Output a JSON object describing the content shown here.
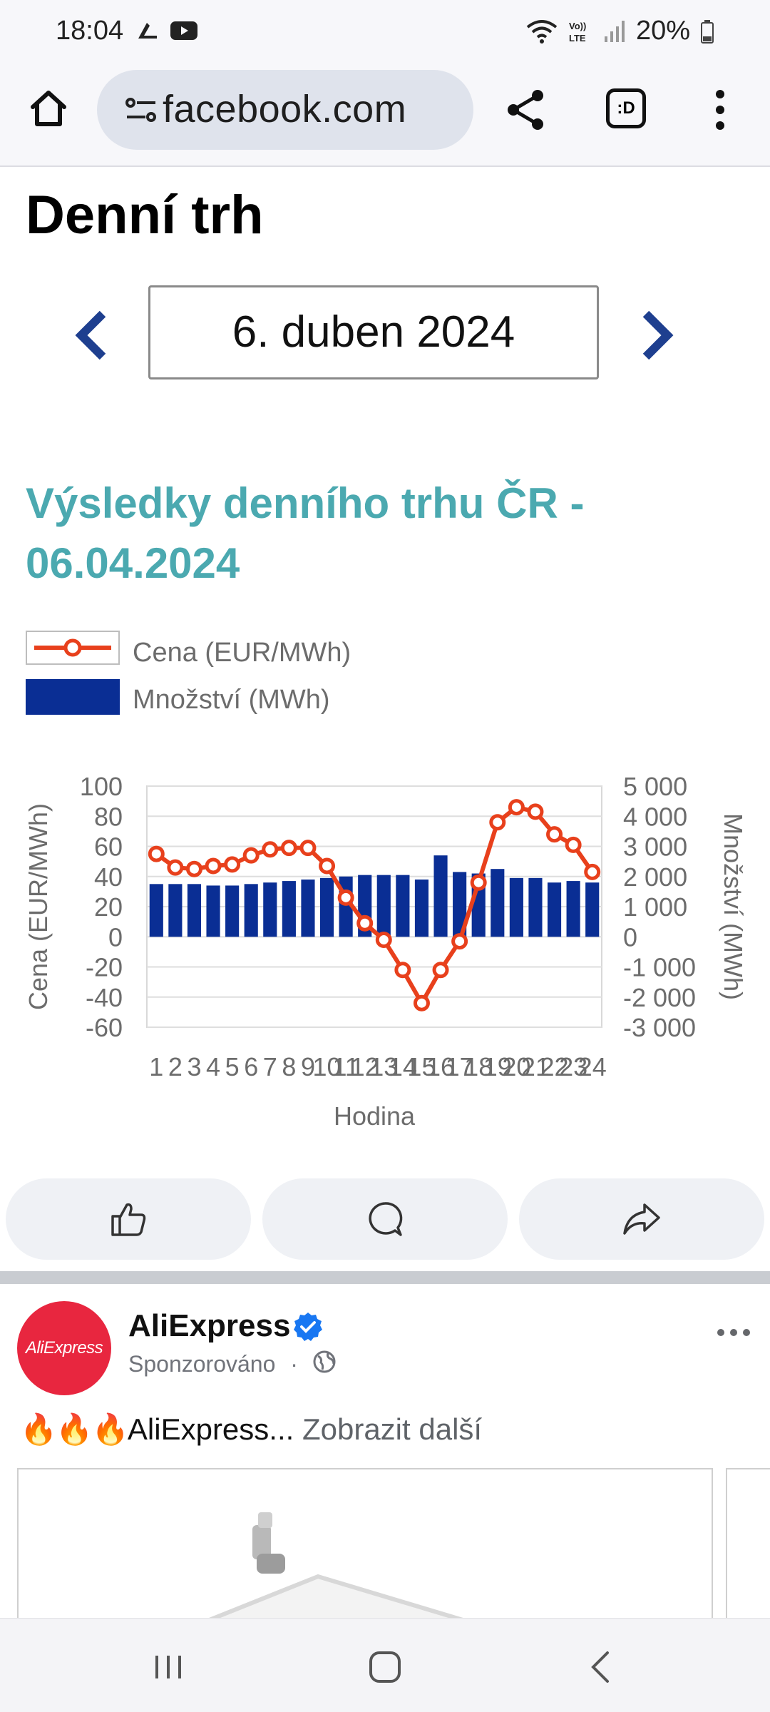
{
  "status_bar": {
    "time": "18:04",
    "battery": "20%",
    "icons": [
      "app-notification-icon",
      "youtube-icon",
      "wifi-icon",
      "volte-icon",
      "signal-icon",
      "battery-icon"
    ]
  },
  "browser": {
    "url": "facebook.com",
    "tabs_label": ":D"
  },
  "article": {
    "title": "Denní trh",
    "date": "6. duben 2024",
    "chart_heading": "Výsledky denního trhu ČR - 06.04.2024"
  },
  "chart_data": {
    "type": "bar+line",
    "legend": [
      {
        "name": "Cena (EUR/MWh)",
        "marker": "line-circle",
        "color": "#e8401c"
      },
      {
        "name": "Množství (MWh)",
        "marker": "bar",
        "color": "#0a2e94"
      }
    ],
    "xlabel": "Hodina",
    "ylabel_left": "Cena (EUR/MWh)",
    "ylabel_right": "Množství (MWh)",
    "ylim_left": [
      -60,
      100
    ],
    "ylim_right": [
      -3000,
      5000
    ],
    "yticks_left": [
      "100",
      "80",
      "60",
      "40",
      "20",
      "0",
      "-20",
      "-40",
      "-60"
    ],
    "yticks_right": [
      "5 000",
      "4 000",
      "3 000",
      "2 000",
      "1 000",
      "0",
      "-1 000",
      "-2 000",
      "-3 000"
    ],
    "categories": [
      "1",
      "2",
      "3",
      "4",
      "5",
      "6",
      "7",
      "8",
      "9",
      "10",
      "11",
      "12",
      "13",
      "14",
      "15",
      "16",
      "17",
      "18",
      "19",
      "20",
      "21",
      "22",
      "23",
      "24"
    ],
    "series": [
      {
        "name": "Množství (MWh)",
        "kind": "bar",
        "axis": "right",
        "values": [
          1750,
          1750,
          1750,
          1700,
          1700,
          1750,
          1800,
          1850,
          1900,
          1950,
          2000,
          2050,
          2050,
          2050,
          1900,
          2700,
          2150,
          2100,
          2250,
          1950,
          1950,
          1800,
          1850,
          1800
        ]
      },
      {
        "name": "Cena (EUR/MWh)",
        "kind": "line",
        "axis": "left",
        "values": [
          55,
          46,
          45,
          47,
          48,
          54,
          58,
          59,
          59,
          47,
          26,
          9,
          -2,
          -22,
          -44,
          -22,
          -3,
          36,
          76,
          86,
          83,
          68,
          61,
          43
        ]
      }
    ],
    "grid": true
  },
  "post": {
    "author": "AliExpress",
    "avatar_text": "AliExpress",
    "sponsored": "Sponzorováno",
    "separator": "·",
    "emojis": "🔥🔥🔥",
    "text": "AliExpress...",
    "more": "Zobrazit další"
  }
}
